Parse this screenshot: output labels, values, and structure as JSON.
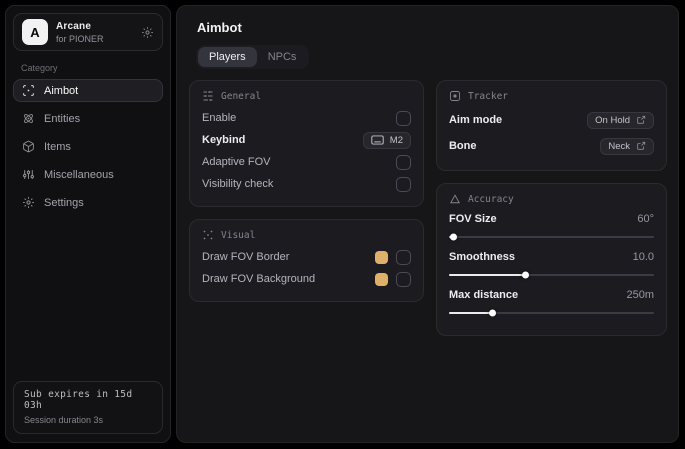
{
  "app": {
    "logo_letter": "A",
    "name": "Arcane",
    "subtitle": "for PIONER"
  },
  "sidebar": {
    "category_label": "Category",
    "items": [
      {
        "label": "Aimbot",
        "icon": "crosshair-scan-icon",
        "active": true
      },
      {
        "label": "Entities",
        "icon": "atom-icon",
        "active": false
      },
      {
        "label": "Items",
        "icon": "package-icon",
        "active": false
      },
      {
        "label": "Miscellaneous",
        "icon": "sliders-vertical-icon",
        "active": false
      },
      {
        "label": "Settings",
        "icon": "gear-icon",
        "active": false
      }
    ],
    "footer": {
      "line1": "Sub expires in 15d 03h",
      "line2": "Session duration 3s"
    }
  },
  "main": {
    "title": "Aimbot",
    "tabs": [
      {
        "label": "Players",
        "active": true
      },
      {
        "label": "NPCs",
        "active": false
      }
    ],
    "panels": {
      "general": {
        "title": "General",
        "rows": [
          {
            "label": "Enable",
            "control": "checkbox",
            "checked": false
          },
          {
            "label": "Keybind",
            "control": "keybind-badge",
            "value": "M2"
          },
          {
            "label": "Adaptive FOV",
            "control": "checkbox",
            "checked": false
          },
          {
            "label": "Visibility check",
            "control": "checkbox",
            "checked": false
          }
        ]
      },
      "visual": {
        "title": "Visual",
        "rows": [
          {
            "label": "Draw FOV Border",
            "control": "color+checkbox",
            "color": "#ddb06c",
            "checked": false
          },
          {
            "label": "Draw FOV Background",
            "control": "color+checkbox",
            "color": "#ddb06c",
            "checked": false
          }
        ]
      },
      "tracker": {
        "title": "Tracker",
        "rows": [
          {
            "label": "Aim mode",
            "value": "On Hold"
          },
          {
            "label": "Bone",
            "value": "Neck"
          }
        ]
      },
      "accuracy": {
        "title": "Accuracy",
        "sliders": [
          {
            "label": "FOV Size",
            "value": "60°",
            "percent": 2
          },
          {
            "label": "Smoothness",
            "value": "10.0",
            "percent": 37
          },
          {
            "label": "Max distance",
            "value": "250m",
            "percent": 21
          }
        ]
      }
    }
  },
  "colors": {
    "swatch": "#ddb06c",
    "accent_fill": "#ebebee"
  }
}
